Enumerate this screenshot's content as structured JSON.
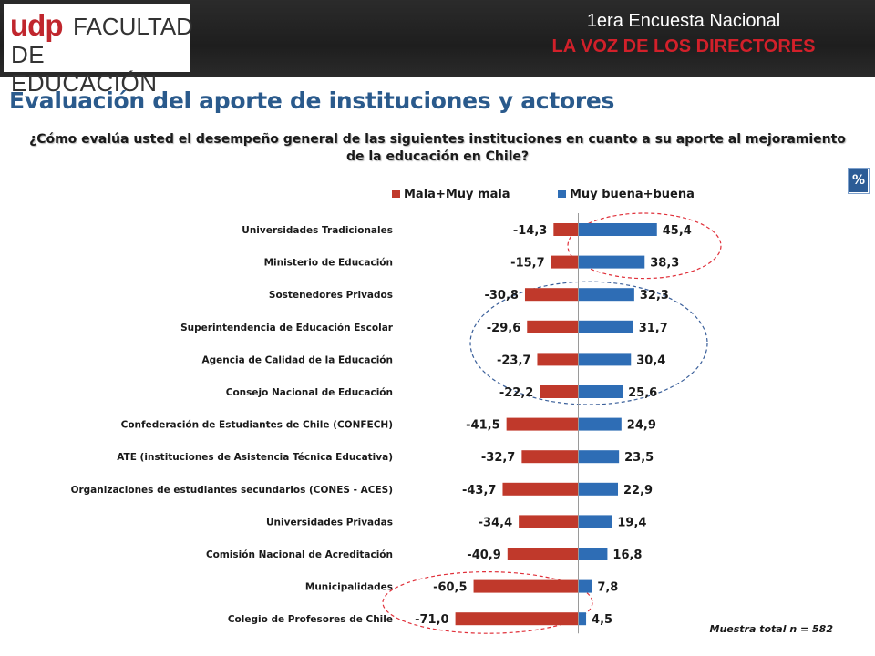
{
  "header": {
    "logo_udp": "udp",
    "logo_line1": "FACULTAD",
    "logo_line2": "DE EDUCACIÓN",
    "survey_line1": "1era Encuesta Nacional",
    "survey_line2": "LA VOZ DE LOS DIRECTORES"
  },
  "page_title": "Evaluación del aporte de instituciones y actores",
  "question": "¿Cómo evalúa usted el desempeño general de las siguientes instituciones en cuanto a su aporte al mejoramiento de la educación en Chile?",
  "percent_badge": "%",
  "sample_note": "Muestra total n = 582",
  "colors": {
    "negative": "#c0392b",
    "positive": "#2e6db5",
    "highlight_red": "#e0303a",
    "highlight_blue": "#3a5f9a"
  },
  "chart_data": {
    "type": "bar",
    "orientation": "horizontal",
    "legend_position": "top",
    "categories": [
      "Universidades Tradicionales",
      "Ministerio de Educación",
      "Sostenedores Privados",
      "Superintendencia de Educación Escolar",
      "Agencia de Calidad de la Educación",
      "Consejo Nacional de Educación",
      "Confederación de Estudiantes de Chile (CONFECH)",
      "ATE (instituciones de Asistencia Técnica Educativa)",
      "Organizaciones de estudiantes secundarios (CONES - ACES)",
      "Universidades Privadas",
      "Comisión Nacional de Acreditación",
      "Municipalidades",
      "Colegio de Profesores de Chile"
    ],
    "series": [
      {
        "name": "Mala+Muy mala",
        "values": [
          -14.3,
          -15.7,
          -30.8,
          -29.6,
          -23.7,
          -22.2,
          -41.5,
          -32.7,
          -43.7,
          -34.4,
          -40.9,
          -60.5,
          -71.0
        ],
        "labels": [
          "-14,3",
          "-15,7",
          "-30,8",
          "-29,6",
          "-23,7",
          "-22,2",
          "-41,5",
          "-32,7",
          "-43,7",
          "-34,4",
          "-40,9",
          "-60,5",
          "-71,0"
        ]
      },
      {
        "name": "Muy buena+buena",
        "values": [
          45.4,
          38.3,
          32.3,
          31.7,
          30.4,
          25.6,
          24.9,
          23.5,
          22.9,
          19.4,
          16.8,
          7.8,
          4.5
        ],
        "labels": [
          "45,4",
          "38,3",
          "32,3",
          "31,7",
          "30,4",
          "25,6",
          "24,9",
          "23,5",
          "22,9",
          "19,4",
          "16,8",
          "7,8",
          "4,5"
        ]
      }
    ],
    "highlights": [
      {
        "color": "red",
        "rows": [
          0,
          1
        ]
      },
      {
        "color": "blue",
        "rows": [
          2,
          5
        ]
      },
      {
        "color": "red",
        "rows": [
          11,
          12
        ]
      }
    ]
  }
}
